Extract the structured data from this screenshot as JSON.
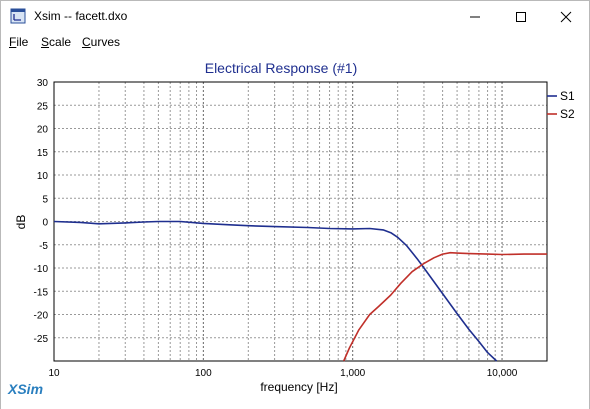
{
  "window": {
    "title": "Xsim -- facett.dxo",
    "minimize_label": "minimize",
    "maximize_label": "maximize",
    "close_label": "close"
  },
  "menu": {
    "items": [
      {
        "label_first": "F",
        "label_rest": "ile"
      },
      {
        "label_first": "S",
        "label_rest": "cale"
      },
      {
        "label_first": "C",
        "label_rest": "urves"
      }
    ]
  },
  "logo": "XSim",
  "chart_data": {
    "type": "line",
    "title": "Electrical Response (#1)",
    "xlabel": "frequency [Hz]",
    "ylabel": "dB",
    "x_scale": "log",
    "xlim": [
      10,
      20000
    ],
    "ylim": [
      -30,
      30
    ],
    "x_ticks": [
      10,
      100,
      1000,
      10000
    ],
    "x_tick_labels": [
      "10",
      "100",
      "1,000",
      "10,000"
    ],
    "y_ticks": [
      30,
      25,
      20,
      15,
      10,
      5,
      0,
      -5,
      -10,
      -15,
      -20,
      -25
    ],
    "grid": true,
    "legend_position": "right",
    "series": [
      {
        "name": "S1",
        "color": "#1f2f8f",
        "points": [
          [
            10,
            0
          ],
          [
            15,
            -0.2
          ],
          [
            20,
            -0.5
          ],
          [
            30,
            -0.3
          ],
          [
            40,
            -0.1
          ],
          [
            50,
            0
          ],
          [
            70,
            0
          ],
          [
            100,
            -0.4
          ],
          [
            150,
            -0.7
          ],
          [
            200,
            -0.9
          ],
          [
            300,
            -1.1
          ],
          [
            500,
            -1.3
          ],
          [
            700,
            -1.5
          ],
          [
            1000,
            -1.6
          ],
          [
            1300,
            -1.5
          ],
          [
            1600,
            -1.8
          ],
          [
            1800,
            -2.4
          ],
          [
            2000,
            -3.4
          ],
          [
            2300,
            -5.2
          ],
          [
            2700,
            -8.0
          ],
          [
            3000,
            -10.0
          ],
          [
            4000,
            -15.5
          ],
          [
            5000,
            -19.8
          ],
          [
            6000,
            -23.2
          ],
          [
            7000,
            -25.8
          ],
          [
            8000,
            -28.2
          ],
          [
            9200,
            -30
          ]
        ]
      },
      {
        "name": "S2",
        "color": "#c0302a",
        "points": [
          [
            870,
            -30
          ],
          [
            950,
            -27.2
          ],
          [
            1100,
            -23.3
          ],
          [
            1300,
            -20.0
          ],
          [
            1500,
            -18.2
          ],
          [
            1800,
            -15.8
          ],
          [
            2100,
            -13.3
          ],
          [
            2500,
            -10.8
          ],
          [
            3000,
            -9.0
          ],
          [
            3500,
            -7.8
          ],
          [
            4000,
            -7.0
          ],
          [
            4500,
            -6.7
          ],
          [
            5000,
            -6.8
          ],
          [
            6000,
            -6.9
          ],
          [
            8000,
            -7.0
          ],
          [
            10000,
            -7.1
          ],
          [
            14000,
            -7.0
          ],
          [
            20000,
            -7.0
          ]
        ]
      }
    ]
  }
}
